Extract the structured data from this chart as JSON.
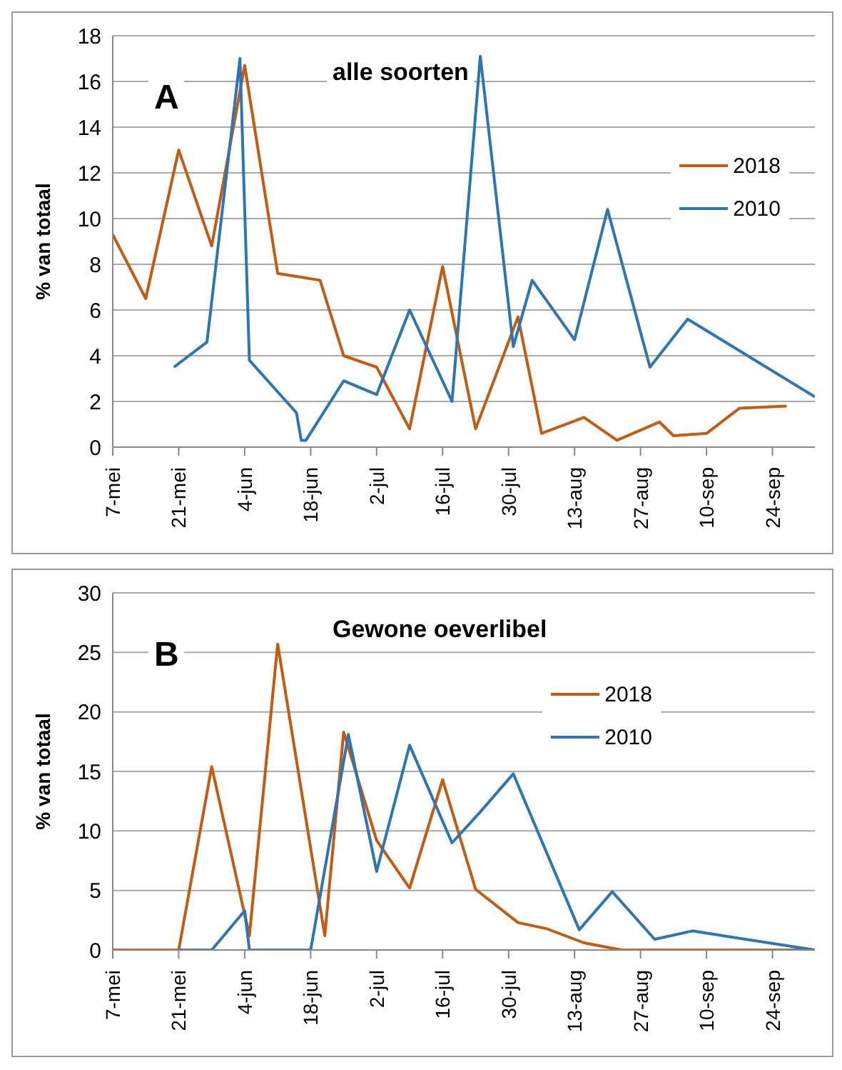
{
  "chart_data": [
    {
      "type": "line",
      "title": "alle soorten",
      "annotations": [
        "A"
      ],
      "ylabel": "% van totaal",
      "xlim": [
        "--05-07",
        "--10-03"
      ],
      "ylim": [
        0,
        18
      ],
      "yticks": [
        0,
        2,
        4,
        6,
        8,
        10,
        12,
        14,
        16,
        18
      ],
      "xticks": [
        {
          "value": "--05-07",
          "label": "7-mei"
        },
        {
          "value": "--05-21",
          "label": "21-mei"
        },
        {
          "value": "--06-04",
          "label": "4-jun"
        },
        {
          "value": "--06-18",
          "label": "18-jun"
        },
        {
          "value": "--07-02",
          "label": "2-jul"
        },
        {
          "value": "--07-16",
          "label": "16-jul"
        },
        {
          "value": "--07-30",
          "label": "30-jul"
        },
        {
          "value": "--08-13",
          "label": "13-aug"
        },
        {
          "value": "--08-27",
          "label": "27-aug"
        },
        {
          "value": "--09-10",
          "label": "10-sep"
        },
        {
          "value": "--09-24",
          "label": "24-sep"
        }
      ],
      "grid": "y",
      "legend": "right",
      "marker": "none",
      "line_style": "solid",
      "series": [
        {
          "name": "2018",
          "color": "#c55a11",
          "x": [
            "--05-07",
            "--05-14",
            "--05-21",
            "--05-28",
            "--06-04",
            "--06-11",
            "--06-20",
            "--06-25",
            "--07-02",
            "--07-09",
            "--07-16",
            "--07-23",
            "--08-01",
            "--08-06",
            "--08-15",
            "--08-22",
            "--08-31",
            "--09-03",
            "--09-10",
            "--09-17",
            "--09-27"
          ],
          "values": [
            9.3,
            6.5,
            13.0,
            8.8,
            16.7,
            7.6,
            7.3,
            4.0,
            3.5,
            0.8,
            7.9,
            0.8,
            5.7,
            0.6,
            1.3,
            0.3,
            1.1,
            0.5,
            0.6,
            1.7,
            1.8
          ]
        },
        {
          "name": "2010",
          "color": "#2e75b6",
          "x": [
            "--05-20",
            "--05-27",
            "--06-03",
            "--06-05",
            "--06-15",
            "--06-16",
            "--06-17",
            "--06-25",
            "--07-02",
            "--07-09",
            "--07-18",
            "--07-24",
            "--07-31",
            "--08-04",
            "--08-13",
            "--08-20",
            "--08-29",
            "--09-06",
            "--10-03"
          ],
          "values": [
            3.5,
            4.6,
            17.0,
            3.8,
            1.5,
            0.3,
            0.3,
            2.9,
            2.3,
            6.0,
            2.0,
            17.1,
            4.4,
            7.3,
            4.7,
            10.4,
            3.5,
            5.6,
            2.2
          ]
        }
      ]
    },
    {
      "type": "line",
      "title": "Gewone oeverlibel",
      "annotations": [
        "B"
      ],
      "ylabel": "% van totaal",
      "xlim": [
        "--05-07",
        "--10-03"
      ],
      "ylim": [
        0,
        30
      ],
      "yticks": [
        0,
        5,
        10,
        15,
        20,
        25,
        30
      ],
      "xticks": [
        {
          "value": "--05-07",
          "label": "7-mei"
        },
        {
          "value": "--05-21",
          "label": "21-mei"
        },
        {
          "value": "--06-04",
          "label": "4-jun"
        },
        {
          "value": "--06-18",
          "label": "18-jun"
        },
        {
          "value": "--07-02",
          "label": "2-jul"
        },
        {
          "value": "--07-16",
          "label": "16-jul"
        },
        {
          "value": "--07-30",
          "label": "30-jul"
        },
        {
          "value": "--08-13",
          "label": "13-aug"
        },
        {
          "value": "--08-27",
          "label": "27-aug"
        },
        {
          "value": "--09-10",
          "label": "10-sep"
        },
        {
          "value": "--09-24",
          "label": "24-sep"
        }
      ],
      "grid": "y",
      "legend": "top right",
      "marker": "none",
      "line_style": "solid",
      "series": [
        {
          "name": "2018",
          "color": "#c55a11",
          "x": [
            "--05-07",
            "--05-21",
            "--05-28",
            "--06-05",
            "--06-11",
            "--06-21",
            "--06-25",
            "--07-02",
            "--07-09",
            "--07-16",
            "--07-23",
            "--08-01",
            "--08-07",
            "--08-15",
            "--08-23",
            "--10-03"
          ],
          "values": [
            0,
            0,
            15.4,
            1.2,
            25.7,
            1.2,
            18.3,
            9.2,
            5.2,
            14.3,
            5.1,
            2.3,
            1.8,
            0.6,
            0,
            0
          ]
        },
        {
          "name": "2010",
          "color": "#2e75b6",
          "x": [
            "--05-21",
            "--05-28",
            "--06-04",
            "--06-05",
            "--06-18",
            "--06-26",
            "--07-02",
            "--07-09",
            "--07-18",
            "--07-24",
            "--07-31",
            "--08-14",
            "--08-21",
            "--08-30",
            "--09-07",
            "--10-03"
          ],
          "values": [
            0,
            0,
            3.3,
            0,
            0,
            18.1,
            6.6,
            17.2,
            9.0,
            11.6,
            14.8,
            1.7,
            4.9,
            0.9,
            1.6,
            0
          ]
        }
      ]
    }
  ]
}
